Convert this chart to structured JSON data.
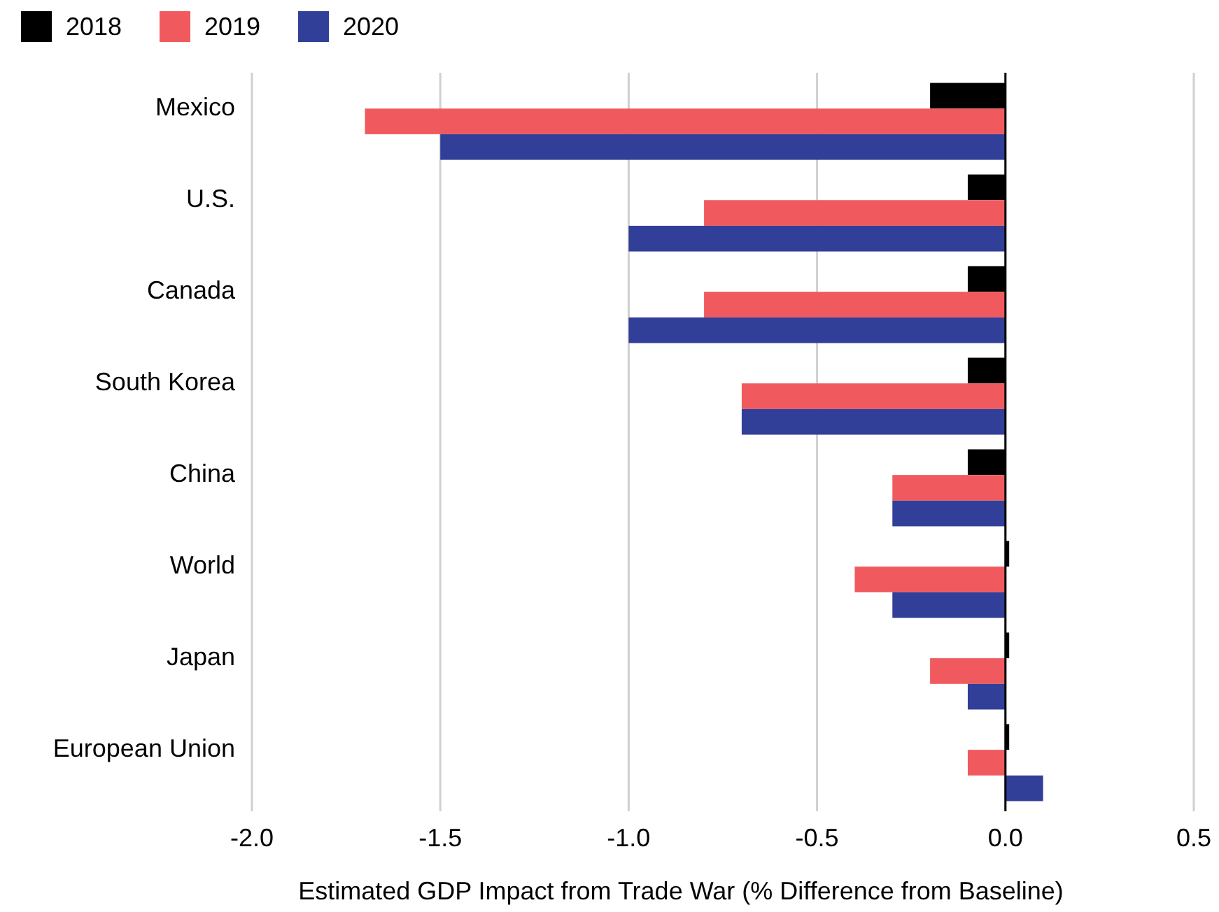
{
  "chart_data": {
    "type": "bar",
    "orientation": "horizontal",
    "categories": [
      "Mexico",
      "U.S.",
      "Canada",
      "South Korea",
      "China",
      "World",
      "Japan",
      "European Union"
    ],
    "series": [
      {
        "name": "2018",
        "color": "#000000",
        "values": [
          -0.2,
          -0.1,
          -0.1,
          -0.1,
          -0.1,
          0.01,
          0.01,
          0.01
        ]
      },
      {
        "name": "2019",
        "color": "#f05a5e",
        "values": [
          -1.7,
          -0.8,
          -0.8,
          -0.7,
          -0.3,
          -0.4,
          -0.2,
          -0.1
        ]
      },
      {
        "name": "2020",
        "color": "#323f99",
        "values": [
          -1.5,
          -1.0,
          -1.0,
          -0.7,
          -0.3,
          -0.3,
          -0.1,
          0.1
        ]
      }
    ],
    "xlim": [
      -2.0,
      0.5
    ],
    "xticks": [
      {
        "value": -2,
        "label": "-2.0"
      },
      {
        "value": -1.5,
        "label": "-1.5"
      },
      {
        "value": -1,
        "label": "-1.0"
      },
      {
        "value": -0.5,
        "label": "-0.5"
      },
      {
        "value": 0,
        "label": "0.0"
      },
      {
        "value": 0.5,
        "label": "0.5"
      }
    ],
    "xlabel": "Estimated GDP Impact from Trade War (% Difference from Baseline)",
    "grid": "x",
    "legend": "top left"
  }
}
